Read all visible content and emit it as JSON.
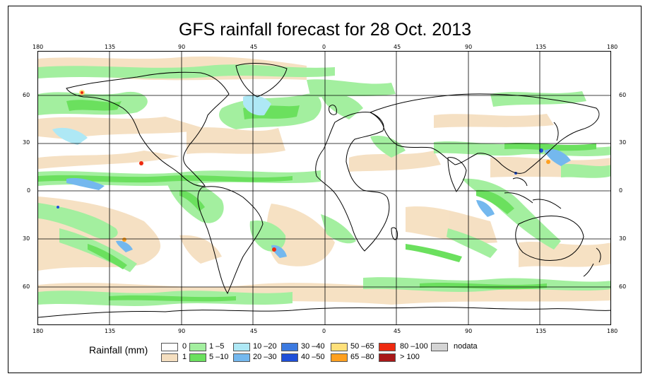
{
  "title": "GFS rainfall forecast for 28 Oct. 2013",
  "lon_ticks": [
    "180",
    "135",
    "90",
    "45",
    "0",
    "45",
    "90",
    "135",
    "180"
  ],
  "lat_ticks": [
    "60",
    "30",
    "0",
    "30",
    "60"
  ],
  "legend": {
    "title": "Rainfall (mm)",
    "items": [
      {
        "label": "0",
        "color": "#ffffff"
      },
      {
        "label": "1",
        "color": "#f5dfc0"
      },
      {
        "label": "1 –5",
        "color": "#a3ef9f"
      },
      {
        "label": "5 –10",
        "color": "#6be05e"
      },
      {
        "label": "10 –20",
        "color": "#aee8f5"
      },
      {
        "label": "20 –30",
        "color": "#74b8ee"
      },
      {
        "label": "30 –40",
        "color": "#3c7ae0"
      },
      {
        "label": "40 –50",
        "color": "#1e4fd8"
      },
      {
        "label": "50 –65",
        "color": "#ffe07a"
      },
      {
        "label": "65 –80",
        "color": "#ffa020"
      },
      {
        "label": "80 –100",
        "color": "#ee2a10"
      },
      {
        "label": "> 100",
        "color": "#a81818"
      },
      {
        "label": "nodata",
        "color": "#d4d4d4"
      }
    ]
  }
}
